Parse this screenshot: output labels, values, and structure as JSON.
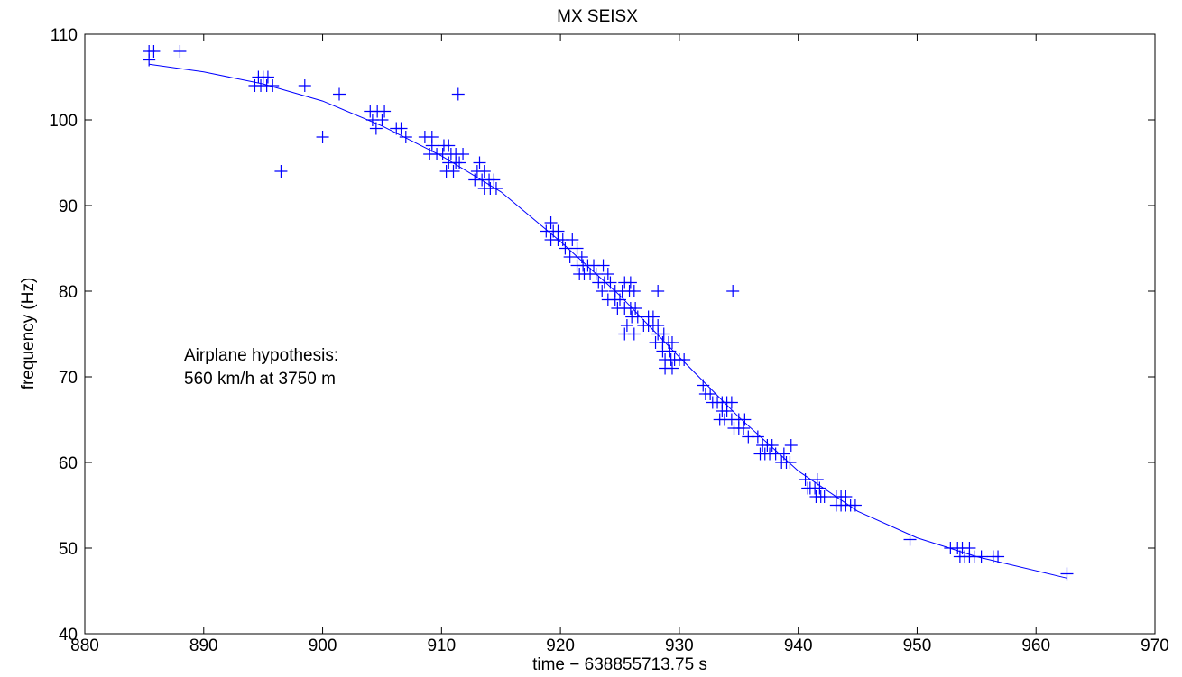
{
  "chart_data": {
    "type": "scatter",
    "title": "MX SEISX",
    "xlabel": "time − 638855713.75 s",
    "ylabel": "frequency (Hz)",
    "xlim": [
      880,
      970
    ],
    "ylim": [
      40,
      110
    ],
    "xticks": [
      880,
      890,
      900,
      910,
      920,
      930,
      940,
      950,
      960,
      970
    ],
    "yticks": [
      40,
      50,
      60,
      70,
      80,
      90,
      100,
      110
    ],
    "grid": false,
    "annotation": [
      "Airplane hypothesis:",
      "560 km/h at 3750 m"
    ],
    "color": "#0000ff",
    "series": [
      {
        "kind": "points",
        "marker": "+",
        "points": [
          [
            885.4,
            108
          ],
          [
            885.8,
            108
          ],
          [
            885.4,
            107
          ],
          [
            888.0,
            108
          ],
          [
            894.6,
            105
          ],
          [
            895.0,
            105
          ],
          [
            895.4,
            105
          ],
          [
            894.8,
            104
          ],
          [
            895.3,
            104
          ],
          [
            894.3,
            104
          ],
          [
            895.8,
            104
          ],
          [
            898.5,
            104
          ],
          [
            896.5,
            94
          ],
          [
            900.0,
            98
          ],
          [
            901.4,
            103
          ],
          [
            904.0,
            101
          ],
          [
            904.6,
            101
          ],
          [
            905.2,
            101
          ],
          [
            904.2,
            100
          ],
          [
            905.0,
            100
          ],
          [
            904.5,
            99
          ],
          [
            906.2,
            99
          ],
          [
            906.6,
            99
          ],
          [
            907.0,
            98
          ],
          [
            908.6,
            98
          ],
          [
            909.2,
            98
          ],
          [
            909.2,
            97
          ],
          [
            910.2,
            97
          ],
          [
            910.6,
            97
          ],
          [
            909.0,
            96
          ],
          [
            909.6,
            96
          ],
          [
            910.1,
            96
          ],
          [
            910.8,
            96
          ],
          [
            911.2,
            96
          ],
          [
            911.8,
            96
          ],
          [
            910.6,
            95
          ],
          [
            911.2,
            95
          ],
          [
            911.5,
            95
          ],
          [
            910.4,
            94
          ],
          [
            911.0,
            94
          ],
          [
            911.4,
            103
          ],
          [
            913.2,
            95
          ],
          [
            913.0,
            94
          ],
          [
            913.6,
            94
          ],
          [
            912.8,
            93
          ],
          [
            913.4,
            93
          ],
          [
            914.0,
            93
          ],
          [
            914.4,
            93
          ],
          [
            913.6,
            92
          ],
          [
            914.1,
            92
          ],
          [
            914.6,
            92
          ],
          [
            918.8,
            87
          ],
          [
            919.2,
            88
          ],
          [
            919.4,
            87
          ],
          [
            919.8,
            87
          ],
          [
            919.2,
            86
          ],
          [
            919.8,
            86
          ],
          [
            920.2,
            86
          ],
          [
            921.0,
            86
          ],
          [
            921.4,
            85
          ],
          [
            920.4,
            85
          ],
          [
            920.8,
            84
          ],
          [
            921.8,
            84
          ],
          [
            921.4,
            83
          ],
          [
            921.9,
            83
          ],
          [
            922.3,
            83
          ],
          [
            922.8,
            83
          ],
          [
            921.6,
            82
          ],
          [
            922.0,
            82
          ],
          [
            922.5,
            82
          ],
          [
            923.0,
            82
          ],
          [
            923.6,
            83
          ],
          [
            924.0,
            82
          ],
          [
            923.2,
            81
          ],
          [
            923.7,
            81
          ],
          [
            924.2,
            81
          ],
          [
            924.6,
            80
          ],
          [
            925.2,
            80
          ],
          [
            925.8,
            80
          ],
          [
            923.5,
            80
          ],
          [
            924.0,
            79
          ],
          [
            924.6,
            79
          ],
          [
            925.0,
            79
          ],
          [
            925.4,
            81
          ],
          [
            925.9,
            81
          ],
          [
            926.2,
            80
          ],
          [
            924.8,
            78
          ],
          [
            925.4,
            78
          ],
          [
            925.9,
            78
          ],
          [
            926.3,
            78
          ],
          [
            926.0,
            77
          ],
          [
            926.5,
            77
          ],
          [
            927.0,
            76
          ],
          [
            925.6,
            76
          ],
          [
            926.2,
            75
          ],
          [
            925.4,
            75
          ],
          [
            927.4,
            77
          ],
          [
            927.8,
            77
          ],
          [
            927.4,
            76
          ],
          [
            927.8,
            76
          ],
          [
            928.2,
            76
          ],
          [
            928.2,
            75
          ],
          [
            928.7,
            75
          ],
          [
            928.0,
            74
          ],
          [
            928.6,
            74
          ],
          [
            929.1,
            74
          ],
          [
            929.4,
            74
          ],
          [
            928.6,
            73
          ],
          [
            929.2,
            73
          ],
          [
            928.8,
            72
          ],
          [
            929.3,
            72
          ],
          [
            929.6,
            72
          ],
          [
            930.0,
            72
          ],
          [
            930.4,
            72
          ],
          [
            928.8,
            71
          ],
          [
            929.4,
            71
          ],
          [
            928.2,
            80
          ],
          [
            934.5,
            80
          ],
          [
            932.0,
            69
          ],
          [
            932.2,
            68
          ],
          [
            932.6,
            68
          ],
          [
            932.8,
            67
          ],
          [
            933.2,
            67
          ],
          [
            933.6,
            67
          ],
          [
            933.6,
            66
          ],
          [
            934.0,
            66
          ],
          [
            934.0,
            67
          ],
          [
            934.4,
            67
          ],
          [
            933.4,
            65
          ],
          [
            933.8,
            65
          ],
          [
            934.4,
            65
          ],
          [
            934.6,
            64
          ],
          [
            935.0,
            64
          ],
          [
            935.4,
            64
          ],
          [
            935.0,
            65
          ],
          [
            935.5,
            65
          ],
          [
            935.8,
            63
          ],
          [
            936.6,
            63
          ],
          [
            937.0,
            62
          ],
          [
            937.4,
            62
          ],
          [
            937.8,
            62
          ],
          [
            936.8,
            61
          ],
          [
            937.2,
            61
          ],
          [
            937.6,
            61
          ],
          [
            938.1,
            61
          ],
          [
            938.6,
            60
          ],
          [
            939.0,
            60
          ],
          [
            939.4,
            62
          ],
          [
            938.8,
            61
          ],
          [
            939.3,
            60
          ],
          [
            940.6,
            58
          ],
          [
            941.0,
            57
          ],
          [
            941.4,
            57
          ],
          [
            941.8,
            57
          ],
          [
            940.8,
            57
          ],
          [
            941.5,
            56
          ],
          [
            941.9,
            56
          ],
          [
            942.2,
            56
          ],
          [
            941.6,
            58
          ],
          [
            943.2,
            56
          ],
          [
            943.6,
            56
          ],
          [
            944.0,
            56
          ],
          [
            943.2,
            55
          ],
          [
            943.6,
            55
          ],
          [
            944.0,
            55
          ],
          [
            944.4,
            55
          ],
          [
            944.8,
            55
          ],
          [
            949.4,
            51
          ],
          [
            952.8,
            50
          ],
          [
            953.4,
            50
          ],
          [
            953.8,
            50
          ],
          [
            954.4,
            50
          ],
          [
            953.6,
            49
          ],
          [
            954.0,
            49
          ],
          [
            954.4,
            49
          ],
          [
            954.8,
            49
          ],
          [
            955.4,
            49
          ],
          [
            956.4,
            49
          ],
          [
            956.8,
            49
          ],
          [
            962.6,
            47
          ]
        ]
      },
      {
        "kind": "curve",
        "points": [
          [
            885.4,
            106.5
          ],
          [
            890,
            105.6
          ],
          [
            895,
            104.2
          ],
          [
            900,
            102.2
          ],
          [
            905,
            99.3
          ],
          [
            910,
            95.8
          ],
          [
            915,
            91.6
          ],
          [
            920,
            85.8
          ],
          [
            925,
            79.5
          ],
          [
            930,
            72.3
          ],
          [
            935,
            65.3
          ],
          [
            940,
            59.0
          ],
          [
            945,
            54.3
          ],
          [
            950,
            51.2
          ],
          [
            955,
            49.0
          ],
          [
            962.6,
            46.5
          ]
        ]
      }
    ]
  }
}
